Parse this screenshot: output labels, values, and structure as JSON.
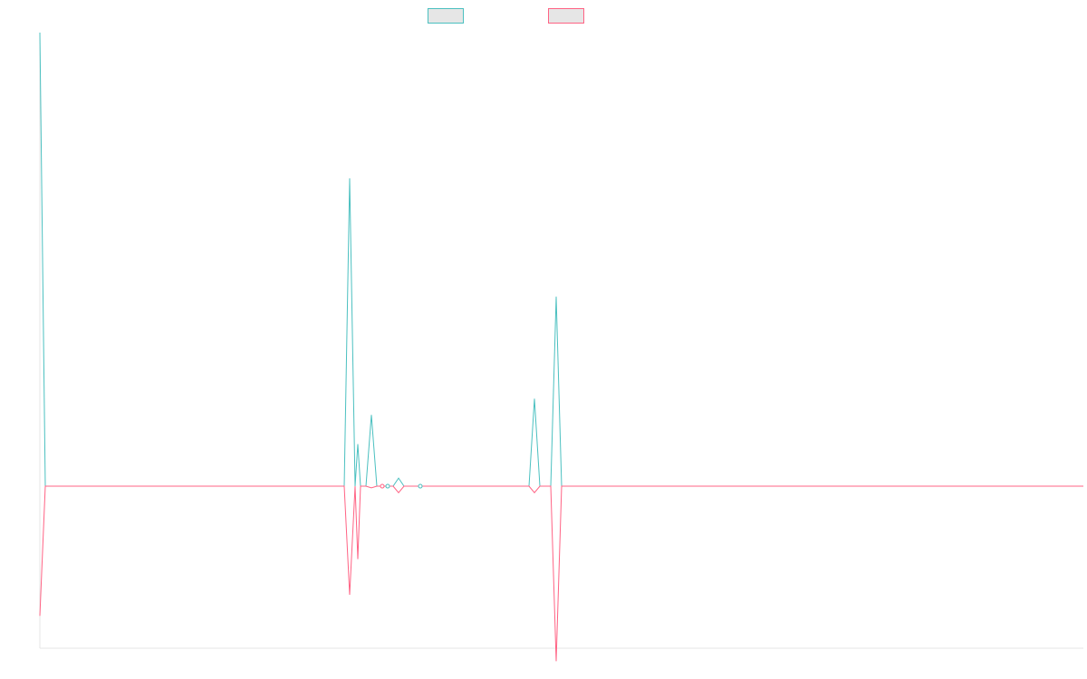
{
  "chart_data": {
    "type": "line",
    "title": "",
    "xlabel": "",
    "ylabel": "",
    "grid": false,
    "legend_position": "top-center",
    "xlim": [
      0,
      192
    ],
    "ylim": [
      -100,
      280
    ],
    "series": [
      {
        "color": "#4bc0c0",
        "values": [
          [
            0,
            280
          ],
          [
            1,
            0
          ],
          [
            56,
            0
          ],
          [
            57,
            190
          ],
          [
            58,
            0
          ],
          [
            58.5,
            26
          ],
          [
            59,
            0
          ],
          [
            60,
            0
          ],
          [
            61,
            44
          ],
          [
            62,
            0
          ],
          [
            63,
            0
          ],
          [
            64,
            0
          ],
          [
            65,
            0
          ],
          [
            66,
            5
          ],
          [
            67,
            0
          ],
          [
            68,
            0
          ],
          [
            69,
            0
          ],
          [
            70,
            0
          ],
          [
            71,
            0
          ],
          [
            90,
            0
          ],
          [
            91,
            54
          ],
          [
            92,
            0
          ],
          [
            94,
            0
          ],
          [
            95,
            117
          ],
          [
            96,
            0
          ],
          [
            192,
            0
          ]
        ]
      },
      {
        "color": "#ff6384",
        "values": [
          [
            0,
            -80
          ],
          [
            1,
            0
          ],
          [
            56,
            0
          ],
          [
            57,
            -67
          ],
          [
            58,
            0
          ],
          [
            58.5,
            -45
          ],
          [
            59,
            0
          ],
          [
            60,
            0
          ],
          [
            61,
            -1
          ],
          [
            62,
            0
          ],
          [
            63,
            0
          ],
          [
            64,
            0
          ],
          [
            65,
            0
          ],
          [
            66,
            -4
          ],
          [
            67,
            0
          ],
          [
            68,
            0
          ],
          [
            69,
            0
          ],
          [
            70,
            0
          ],
          [
            71,
            0
          ],
          [
            90,
            0
          ],
          [
            91,
            -4
          ],
          [
            92,
            0
          ],
          [
            94,
            0
          ],
          [
            95,
            -108
          ],
          [
            96,
            0
          ],
          [
            192,
            0
          ]
        ]
      }
    ],
    "highlighted_points": [
      {
        "series": 1,
        "x": 63,
        "y": 0
      },
      {
        "series": 0,
        "x": 64,
        "y": 0
      },
      {
        "series": 0,
        "x": 70,
        "y": 0
      }
    ]
  }
}
